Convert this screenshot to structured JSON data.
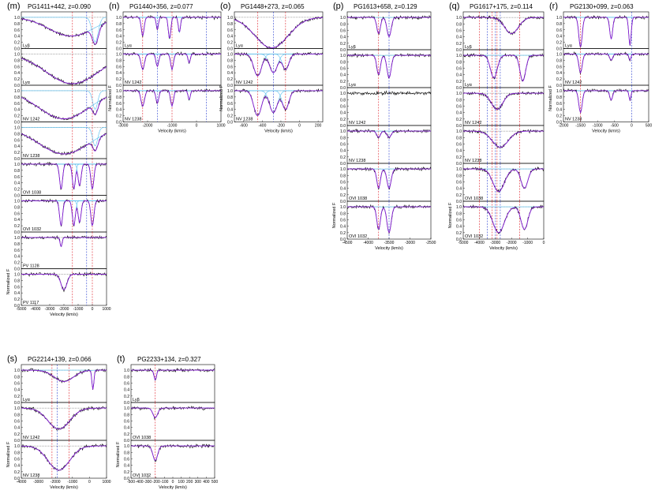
{
  "colors": {
    "data": "#000000",
    "model": "#8a1fd6",
    "component": "#55bff0",
    "marker_red": "#e0202a",
    "marker_blue": "#2a3fd0"
  },
  "chart_data": [
    {
      "type": "line",
      "label": "(m)",
      "title": "PG1411+442, z=0.090",
      "xlim": [
        -5000,
        1000
      ],
      "xticks": [
        "-5000",
        "-4000",
        "-3000",
        "-2000",
        "-1000",
        "0",
        "1000"
      ],
      "xlabel": "Velocity (km/s)",
      "ylabel": "Normalized F",
      "yticks": [
        "0.0",
        "0.2",
        "0.4",
        "0.6",
        "0.8",
        "1.0"
      ],
      "panels": [
        {
          "label": "Lyβ",
          "abs": [
            [
              -1500,
              2200,
              0.6
            ],
            [
              200,
              300,
              0.8
            ]
          ]
        },
        {
          "label": "Lyα",
          "abs": [
            [
              -1400,
              2600,
              0.95
            ]
          ]
        },
        {
          "label": "NV 1242",
          "abs": [
            [
              -2000,
              2500,
              0.9
            ],
            [
              200,
              250,
              0.6
            ]
          ]
        },
        {
          "label": "NV 1238",
          "abs": [
            [
              -2000,
              2500,
              0.85
            ],
            [
              200,
              250,
              0.6
            ]
          ]
        },
        {
          "label": "OVI 1038",
          "abs": [
            [
              -2200,
              150,
              0.8
            ],
            [
              -1300,
              150,
              0.8
            ],
            [
              -900,
              150,
              0.7
            ],
            [
              0,
              150,
              0.8
            ]
          ]
        },
        {
          "label": "OVI 1032",
          "abs": [
            [
              -2200,
              150,
              0.8
            ],
            [
              -1300,
              150,
              0.8
            ],
            [
              -900,
              150,
              0.7
            ],
            [
              0,
              150,
              0.8
            ]
          ]
        },
        {
          "label": "PV 1128",
          "abs": [
            [
              -2200,
              100,
              0.3
            ]
          ]
        },
        {
          "label": "PV 1117",
          "abs": [
            [
              -2000,
              300,
              0.5
            ]
          ]
        }
      ],
      "markers": [
        -1400,
        -400,
        0
      ]
    },
    {
      "type": "line",
      "label": "(n)",
      "title": "PG1440+356, z=0.077",
      "xlim": [
        -3000,
        1000
      ],
      "xticks": [
        "-3000",
        "-2000",
        "-1000",
        "0",
        "1000"
      ],
      "xlabel": "Velocity (km/s)",
      "ylabel": "Normalized F",
      "yticks": [
        "0.0",
        "0.2",
        "0.4",
        "0.6",
        "0.8",
        "1.0"
      ],
      "panels": [
        {
          "label": "Lyα",
          "abs": [
            [
              -2200,
              80,
              0.6
            ],
            [
              -1600,
              60,
              0.4
            ],
            [
              -1100,
              70,
              0.7
            ],
            [
              -700,
              60,
              0.5
            ]
          ]
        },
        {
          "label": "NV 1242",
          "abs": [
            [
              -2200,
              100,
              0.5
            ],
            [
              -1600,
              80,
              0.4
            ],
            [
              -1000,
              80,
              0.5
            ],
            [
              -300,
              60,
              0.3
            ]
          ]
        },
        {
          "label": "NV 1238",
          "abs": [
            [
              -2200,
              100,
              0.5
            ],
            [
              -1600,
              80,
              0.4
            ],
            [
              -1000,
              80,
              0.5
            ],
            [
              -300,
              60,
              0.3
            ]
          ]
        }
      ],
      "markers": [
        -2200,
        -1600,
        -1000,
        400
      ]
    },
    {
      "type": "line",
      "label": "(o)",
      "title": "PG1448+273, z=0.065",
      "xlim": [
        -700,
        250
      ],
      "xticks": [
        "-600",
        "-400",
        "-200",
        "0",
        "200"
      ],
      "xlabel": "Velocity (km/s)",
      "ylabel": "Normalized F",
      "yticks": [
        "0.0",
        "0.2",
        "0.4",
        "0.6",
        "0.8",
        "1.0"
      ],
      "panels": [
        {
          "label": "Lyα",
          "abs": [
            [
              -300,
              250,
              0.98
            ]
          ]
        },
        {
          "label": "NV 1242",
          "abs": [
            [
              -450,
              60,
              0.7
            ],
            [
              -280,
              60,
              0.6
            ],
            [
              -150,
              50,
              0.5
            ]
          ]
        },
        {
          "label": "NV 1238",
          "abs": [
            [
              -450,
              60,
              0.8
            ],
            [
              -280,
              60,
              0.7
            ],
            [
              -150,
              50,
              0.6
            ]
          ]
        }
      ],
      "markers": [
        -450,
        -280,
        -150
      ]
    },
    {
      "type": "line",
      "label": "(p)",
      "title": "PG1613+658, z=0.129",
      "xlim": [
        -4500,
        -2500
      ],
      "xticks": [
        "-4500",
        "-4000",
        "-3500",
        "-3000",
        "-2500"
      ],
      "xlabel": "Velocity (km/s)",
      "ylabel": "Normalized F",
      "yticks": [
        "0.0",
        "0.2",
        "0.4",
        "0.6",
        "0.8",
        "1.0"
      ],
      "panels": [
        {
          "label": "Lyβ",
          "abs": [
            [
              -3750,
              60,
              0.5
            ],
            [
              -3500,
              70,
              0.6
            ]
          ]
        },
        {
          "label": "Lyα",
          "abs": [
            [
              -3750,
              60,
              0.6
            ],
            [
              -3500,
              70,
              0.7
            ]
          ]
        },
        {
          "label": "NV 1242",
          "abs": []
        },
        {
          "label": "NV 1238",
          "abs": [
            [
              -3750,
              60,
              0.2
            ],
            [
              -3500,
              70,
              0.2
            ]
          ]
        },
        {
          "label": "OVI 1038",
          "abs": [
            [
              -3750,
              60,
              0.6
            ],
            [
              -3500,
              70,
              0.6
            ]
          ]
        },
        {
          "label": "OVI 1032",
          "abs": [
            [
              -3750,
              60,
              0.7
            ],
            [
              -3500,
              70,
              0.8
            ]
          ]
        }
      ],
      "markers": [
        -3750,
        -3500
      ]
    },
    {
      "type": "line",
      "label": "(q)",
      "title": "PG1617+175, z=0.114",
      "xlim": [
        -5000,
        0
      ],
      "xticks": [
        "-5000",
        "-4000",
        "-3000",
        "-2000",
        "-1000",
        "0"
      ],
      "xlabel": "Velocity (km/s)",
      "ylabel": "Normalized F",
      "yticks": [
        "0.0",
        "0.2",
        "0.4",
        "0.6",
        "0.8",
        "1.0"
      ],
      "panels": [
        {
          "label": "Lyβ",
          "abs": [
            [
              -2000,
              600,
              0.5
            ]
          ]
        },
        {
          "label": "Lyα",
          "abs": [
            [
              -3100,
              300,
              0.7
            ],
            [
              -1300,
              250,
              0.8
            ]
          ]
        },
        {
          "label": "NV 1242",
          "abs": [
            [
              -2900,
              500,
              0.5
            ]
          ]
        },
        {
          "label": "NV 1238",
          "abs": [
            [
              -2700,
              700,
              0.5
            ]
          ]
        },
        {
          "label": "OVI 1038",
          "abs": [
            [
              -2800,
              500,
              0.7
            ],
            [
              -1200,
              300,
              0.6
            ]
          ]
        },
        {
          "label": "OVI 1032",
          "abs": [
            [
              -2800,
              500,
              0.8
            ],
            [
              -1200,
              300,
              0.7
            ]
          ]
        }
      ],
      "markers": [
        -4000,
        -3500,
        -3200,
        -3000,
        -2900,
        -2700,
        -1500
      ]
    },
    {
      "type": "line",
      "label": "(r)",
      "title": "PG2130+099, z=0.063",
      "xlim": [
        -2000,
        500
      ],
      "xticks": [
        "-2000",
        "-1500",
        "-1000",
        "-500",
        "0",
        "500"
      ],
      "xlabel": "Velocity (km/s)",
      "ylabel": "Normalized F",
      "yticks": [
        "0.0",
        "0.2",
        "0.4",
        "0.6",
        "0.8",
        "1.0"
      ],
      "panels": [
        {
          "label": "Lyα",
          "abs": [
            [
              -1500,
              70,
              0.95
            ],
            [
              -600,
              60,
              0.7
            ],
            [
              -50,
              50,
              0.9
            ]
          ]
        },
        {
          "label": "NV 1242",
          "abs": [
            [
              -1500,
              70,
              0.6
            ],
            [
              -600,
              60,
              0.2
            ],
            [
              -50,
              40,
              0.2
            ]
          ]
        },
        {
          "label": "NV 1238",
          "abs": [
            [
              -1500,
              70,
              0.7
            ],
            [
              -600,
              60,
              0.3
            ],
            [
              -50,
              40,
              0.3
            ]
          ]
        }
      ],
      "markers": [
        -1500,
        0
      ]
    },
    {
      "type": "line",
      "label": "(s)",
      "title": "PG2214+139, z=0.066",
      "xlim": [
        -4000,
        1000
      ],
      "xticks": [
        "-4000",
        "-3000",
        "-2000",
        "-1000",
        "0",
        "1000"
      ],
      "xlabel": "Velocity (km/s)",
      "ylabel": "Normalized F",
      "yticks": [
        "0.0",
        "0.2",
        "0.4",
        "0.6",
        "0.8",
        "1.0"
      ],
      "panels": [
        {
          "label": "Lyα",
          "abs": [
            [
              -1500,
              800,
              0.35
            ],
            [
              200,
              80,
              0.6
            ]
          ]
        },
        {
          "label": "NV 1242",
          "abs": [
            [
              -1800,
              900,
              0.65
            ]
          ]
        },
        {
          "label": "NV 1238",
          "abs": [
            [
              -1800,
              900,
              0.75
            ]
          ]
        }
      ],
      "markers": [
        -2200,
        -1900,
        -1200
      ]
    },
    {
      "type": "line",
      "label": "(t)",
      "title": "PG2233+134, z=0.327",
      "xlim": [
        -500,
        500
      ],
      "xticks": [
        "-500",
        "-400",
        "-300",
        "-200",
        "-100",
        "0",
        "100",
        "200",
        "300",
        "400",
        "500"
      ],
      "xlabel": "Velocity (km/s)",
      "ylabel": "Normalized F",
      "yticks": [
        "0.0",
        "0.2",
        "0.4",
        "0.6",
        "0.8",
        "1.0"
      ],
      "panels": [
        {
          "label": "Lyβ",
          "abs": [
            [
              -210,
              20,
              0.3
            ]
          ]
        },
        {
          "label": "OVI 1038",
          "abs": [
            [
              -210,
              40,
              0.3
            ]
          ]
        },
        {
          "label": "OVI 1032",
          "abs": [
            [
              -210,
              40,
              0.45
            ]
          ]
        }
      ],
      "markers": [
        -210
      ]
    }
  ]
}
